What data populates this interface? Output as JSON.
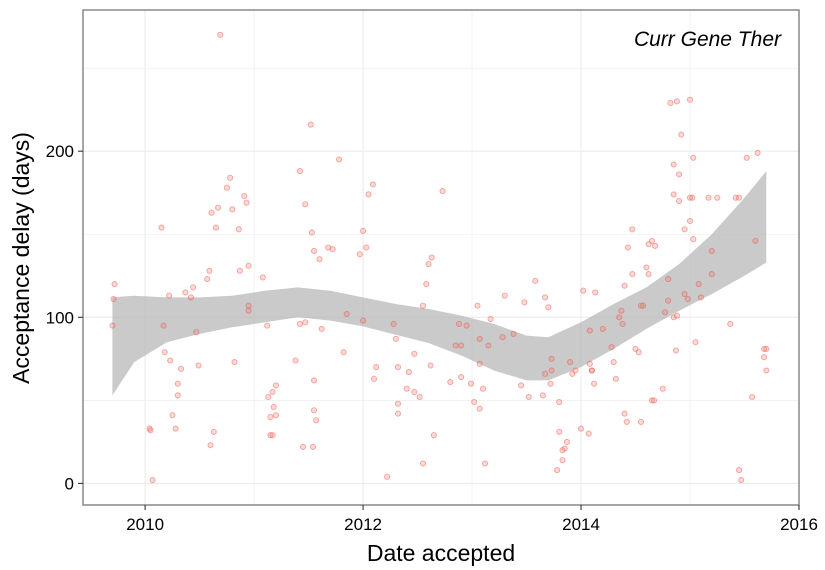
{
  "chart_data": {
    "type": "scatter",
    "title": "Curr Gene Ther",
    "xlabel": "Date accepted",
    "ylabel": "Acceptance delay (days)",
    "xlim": [
      2009.43,
      2016
    ],
    "ylim": [
      -13,
      285
    ],
    "x_ticks": [
      2010,
      2012,
      2014,
      2016
    ],
    "y_ticks": [
      0,
      100,
      200
    ],
    "grid": true,
    "colors": {
      "point_fill": "#f8766d",
      "point_stroke": "#e8483c",
      "band": "#b3b3b3",
      "panel_border": "#808080",
      "grid": "#ebebeb"
    },
    "points": [
      [
        2009.72,
        120
      ],
      [
        2009.71,
        111
      ],
      [
        2009.7,
        95
      ],
      [
        2010.04,
        33
      ],
      [
        2010.05,
        32
      ],
      [
        2010.07,
        2
      ],
      [
        2010.15,
        154
      ],
      [
        2010.17,
        95
      ],
      [
        2010.18,
        79
      ],
      [
        2010.22,
        113
      ],
      [
        2010.23,
        74
      ],
      [
        2010.25,
        41
      ],
      [
        2010.28,
        33
      ],
      [
        2010.3,
        53
      ],
      [
        2010.3,
        60
      ],
      [
        2010.33,
        69
      ],
      [
        2010.37,
        115
      ],
      [
        2010.42,
        112
      ],
      [
        2010.44,
        118
      ],
      [
        2010.47,
        91
      ],
      [
        2010.49,
        71
      ],
      [
        2010.57,
        123
      ],
      [
        2010.59,
        128
      ],
      [
        2010.6,
        23
      ],
      [
        2010.61,
        163
      ],
      [
        2010.63,
        31
      ],
      [
        2010.65,
        154
      ],
      [
        2010.67,
        166
      ],
      [
        2010.69,
        270
      ],
      [
        2010.75,
        178
      ],
      [
        2010.78,
        184
      ],
      [
        2010.8,
        165
      ],
      [
        2010.82,
        73
      ],
      [
        2010.86,
        153
      ],
      [
        2010.87,
        128
      ],
      [
        2010.91,
        173
      ],
      [
        2010.93,
        169
      ],
      [
        2010.95,
        131
      ],
      [
        2010.95,
        107
      ],
      [
        2010.95,
        104
      ],
      [
        2011.08,
        124
      ],
      [
        2011.12,
        95
      ],
      [
        2011.13,
        52
      ],
      [
        2011.15,
        40
      ],
      [
        2011.17,
        55
      ],
      [
        2011.15,
        29
      ],
      [
        2011.18,
        46
      ],
      [
        2011.2,
        59
      ],
      [
        2011.2,
        41
      ],
      [
        2011.17,
        29
      ],
      [
        2011.38,
        74
      ],
      [
        2011.42,
        96
      ],
      [
        2011.42,
        188
      ],
      [
        2011.45,
        22
      ],
      [
        2011.47,
        168
      ],
      [
        2011.47,
        97
      ],
      [
        2011.52,
        216
      ],
      [
        2011.53,
        151
      ],
      [
        2011.54,
        22
      ],
      [
        2011.55,
        140
      ],
      [
        2011.55,
        62
      ],
      [
        2011.55,
        44
      ],
      [
        2011.57,
        38
      ],
      [
        2011.6,
        135
      ],
      [
        2011.62,
        93
      ],
      [
        2011.68,
        142
      ],
      [
        2011.72,
        141
      ],
      [
        2011.78,
        195
      ],
      [
        2011.82,
        79
      ],
      [
        2011.85,
        102
      ],
      [
        2011.97,
        138
      ],
      [
        2012.0,
        152
      ],
      [
        2012.0,
        98
      ],
      [
        2012.03,
        142
      ],
      [
        2012.05,
        174
      ],
      [
        2012.09,
        180
      ],
      [
        2012.12,
        70
      ],
      [
        2012.1,
        63
      ],
      [
        2012.22,
        4
      ],
      [
        2012.28,
        96
      ],
      [
        2012.3,
        87
      ],
      [
        2012.32,
        70
      ],
      [
        2012.32,
        42
      ],
      [
        2012.32,
        48
      ],
      [
        2012.4,
        57
      ],
      [
        2012.42,
        67
      ],
      [
        2012.47,
        78
      ],
      [
        2012.47,
        55
      ],
      [
        2012.52,
        52
      ],
      [
        2012.55,
        12
      ],
      [
        2012.55,
        107
      ],
      [
        2012.58,
        120
      ],
      [
        2012.6,
        132
      ],
      [
        2012.62,
        71
      ],
      [
        2012.63,
        136
      ],
      [
        2012.65,
        29
      ],
      [
        2012.73,
        176
      ],
      [
        2012.8,
        61
      ],
      [
        2012.85,
        83
      ],
      [
        2012.88,
        96
      ],
      [
        2012.9,
        83
      ],
      [
        2012.9,
        64
      ],
      [
        2012.95,
        95
      ],
      [
        2012.99,
        60
      ],
      [
        2013.02,
        49
      ],
      [
        2013.05,
        107
      ],
      [
        2013.07,
        87
      ],
      [
        2013.07,
        72
      ],
      [
        2013.07,
        45
      ],
      [
        2013.1,
        57
      ],
      [
        2013.12,
        12
      ],
      [
        2013.15,
        83
      ],
      [
        2013.17,
        99
      ],
      [
        2013.28,
        88
      ],
      [
        2013.3,
        113
      ],
      [
        2013.38,
        90
      ],
      [
        2013.45,
        59
      ],
      [
        2013.48,
        109
      ],
      [
        2013.52,
        52
      ],
      [
        2013.58,
        122
      ],
      [
        2013.65,
        53
      ],
      [
        2013.67,
        66
      ],
      [
        2013.67,
        112
      ],
      [
        2013.7,
        106
      ],
      [
        2013.72,
        60
      ],
      [
        2013.73,
        75
      ],
      [
        2013.73,
        68
      ],
      [
        2013.78,
        8
      ],
      [
        2013.8,
        49
      ],
      [
        2013.8,
        31
      ],
      [
        2013.83,
        20
      ],
      [
        2013.83,
        14
      ],
      [
        2013.85,
        21
      ],
      [
        2013.87,
        25
      ],
      [
        2013.9,
        73
      ],
      [
        2013.92,
        66
      ],
      [
        2013.95,
        68
      ],
      [
        2014.0,
        33
      ],
      [
        2014.02,
        116
      ],
      [
        2014.07,
        30
      ],
      [
        2014.08,
        92
      ],
      [
        2014.08,
        72
      ],
      [
        2014.1,
        68
      ],
      [
        2014.1,
        68
      ],
      [
        2014.12,
        60
      ],
      [
        2014.13,
        115
      ],
      [
        2014.2,
        93
      ],
      [
        2014.28,
        82
      ],
      [
        2014.3,
        73
      ],
      [
        2014.32,
        63
      ],
      [
        2014.35,
        100
      ],
      [
        2014.37,
        104
      ],
      [
        2014.38,
        96
      ],
      [
        2014.4,
        42
      ],
      [
        2014.4,
        119
      ],
      [
        2014.42,
        37
      ],
      [
        2014.43,
        142
      ],
      [
        2014.47,
        153
      ],
      [
        2014.47,
        126
      ],
      [
        2014.5,
        81
      ],
      [
        2014.53,
        79
      ],
      [
        2014.55,
        107
      ],
      [
        2014.55,
        37
      ],
      [
        2014.57,
        107
      ],
      [
        2014.6,
        130
      ],
      [
        2014.62,
        144
      ],
      [
        2014.62,
        126
      ],
      [
        2014.65,
        146
      ],
      [
        2014.65,
        50
      ],
      [
        2014.67,
        50
      ],
      [
        2014.68,
        143
      ],
      [
        2014.75,
        57
      ],
      [
        2014.77,
        103
      ],
      [
        2014.8,
        123
      ],
      [
        2014.8,
        110
      ],
      [
        2014.82,
        229
      ],
      [
        2014.85,
        192
      ],
      [
        2014.85,
        174
      ],
      [
        2014.85,
        100
      ],
      [
        2014.87,
        80
      ],
      [
        2014.88,
        230
      ],
      [
        2014.88,
        101
      ],
      [
        2014.9,
        186
      ],
      [
        2014.9,
        170
      ],
      [
        2014.92,
        210
      ],
      [
        2014.95,
        114
      ],
      [
        2014.95,
        153
      ],
      [
        2014.98,
        111
      ],
      [
        2015.0,
        231
      ],
      [
        2015.0,
        158
      ],
      [
        2015.0,
        172
      ],
      [
        2015.02,
        172
      ],
      [
        2015.03,
        196
      ],
      [
        2015.03,
        147
      ],
      [
        2015.05,
        85
      ],
      [
        2015.08,
        120
      ],
      [
        2015.1,
        112
      ],
      [
        2015.17,
        172
      ],
      [
        2015.2,
        140
      ],
      [
        2015.2,
        126
      ],
      [
        2015.25,
        172
      ],
      [
        2015.37,
        96
      ],
      [
        2015.42,
        172
      ],
      [
        2015.45,
        172
      ],
      [
        2015.45,
        8
      ],
      [
        2015.47,
        2
      ],
      [
        2015.52,
        196
      ],
      [
        2015.57,
        52
      ],
      [
        2015.6,
        146
      ],
      [
        2015.62,
        199
      ],
      [
        2015.68,
        81
      ],
      [
        2015.68,
        76
      ],
      [
        2015.7,
        68
      ],
      [
        2015.7,
        81
      ]
    ],
    "smooth": {
      "x": [
        2009.7,
        2009.9,
        2010.2,
        2010.5,
        2010.8,
        2011.1,
        2011.4,
        2011.7,
        2012.0,
        2012.3,
        2012.6,
        2012.9,
        2013.2,
        2013.5,
        2013.7,
        2014.0,
        2014.3,
        2014.6,
        2014.9,
        2015.2,
        2015.5,
        2015.7
      ],
      "fit": [
        98,
        97.5,
        98.5,
        101,
        104,
        107,
        109,
        107.5,
        103,
        99,
        95,
        90,
        82.5,
        76,
        75,
        84,
        94,
        105,
        117,
        132,
        150,
        160
      ],
      "lower": [
        53,
        73,
        85,
        90,
        94,
        97,
        100,
        98,
        94.5,
        89.5,
        84.5,
        77,
        68,
        62,
        62,
        70,
        81,
        93,
        104,
        114,
        125,
        133
      ],
      "upper": [
        112,
        113,
        112,
        112,
        113,
        116,
        118,
        116,
        112,
        108,
        105,
        101,
        96,
        89,
        88,
        97,
        108,
        118,
        132,
        150,
        172,
        188
      ]
    }
  }
}
